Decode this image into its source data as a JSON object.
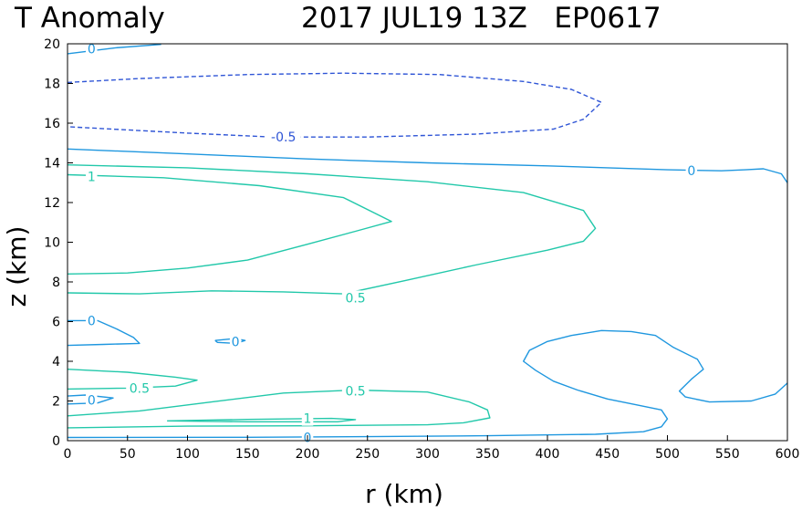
{
  "title": {
    "left": "T Anomaly",
    "right": "2017 JUL19 13Z   EP0617"
  },
  "chart_data": {
    "type": "contour",
    "title": "T Anomaly   2017 JUL19 13Z   EP0617",
    "xlabel": "r (km)",
    "ylabel": "z (km)",
    "xlim": [
      0,
      600
    ],
    "ylim": [
      0,
      20
    ],
    "xticks": [
      0,
      50,
      100,
      150,
      200,
      250,
      300,
      350,
      400,
      450,
      500,
      550,
      600
    ],
    "yticks": [
      0,
      2,
      4,
      6,
      8,
      10,
      12,
      14,
      16,
      18,
      20
    ],
    "grid": false,
    "colors": {
      "neg": "#2f55d6",
      "zero": "#1f97df",
      "pos": "#22c8aa"
    },
    "contours": [
      {
        "level": "-0.5",
        "style": "dashed",
        "color": "neg",
        "points": [
          [
            0,
            18.05
          ],
          [
            60,
            18.25
          ],
          [
            150,
            18.45
          ],
          [
            230,
            18.52
          ],
          [
            310,
            18.45
          ],
          [
            380,
            18.1
          ],
          [
            420,
            17.7
          ],
          [
            445,
            17.05
          ],
          [
            430,
            16.2
          ],
          [
            405,
            15.7
          ],
          [
            340,
            15.45
          ],
          [
            250,
            15.3
          ],
          [
            170,
            15.3
          ],
          [
            100,
            15.5
          ],
          [
            0,
            15.82
          ]
        ]
      },
      {
        "level": "0",
        "color": "zero",
        "points": [
          [
            0,
            14.7
          ],
          [
            100,
            14.45
          ],
          [
            200,
            14.2
          ],
          [
            300,
            14.0
          ],
          [
            400,
            13.85
          ],
          [
            500,
            13.65
          ],
          [
            545,
            13.6
          ],
          [
            565,
            13.65
          ],
          [
            580,
            13.7
          ],
          [
            595,
            13.45
          ],
          [
            600,
            13.0
          ]
        ]
      },
      {
        "level": "0",
        "color": "zero",
        "points": [
          [
            0,
            19.5
          ],
          [
            40,
            19.8
          ],
          [
            78,
            19.97
          ]
        ]
      },
      {
        "level": "0",
        "color": "zero",
        "points": [
          [
            0,
            6.05
          ],
          [
            25,
            6.05
          ],
          [
            42,
            5.6
          ],
          [
            55,
            5.2
          ],
          [
            60,
            4.9
          ],
          [
            30,
            4.85
          ],
          [
            0,
            4.8
          ]
        ]
      },
      {
        "level": "0",
        "color": "zero",
        "points": [
          [
            123,
            5.05
          ],
          [
            140,
            5.15
          ],
          [
            148,
            5.05
          ],
          [
            140,
            4.9
          ],
          [
            125,
            4.95
          ],
          [
            123,
            5.05
          ]
        ]
      },
      {
        "level": "0",
        "color": "zero",
        "points": [
          [
            0,
            2.25
          ],
          [
            15,
            2.3
          ],
          [
            38,
            2.15
          ],
          [
            25,
            1.9
          ],
          [
            0,
            1.85
          ]
        ]
      },
      {
        "level": "0",
        "color": "zero",
        "points": [
          [
            600,
            2.9
          ],
          [
            590,
            2.35
          ],
          [
            570,
            2.0
          ],
          [
            535,
            1.95
          ],
          [
            515,
            2.2
          ],
          [
            510,
            2.5
          ],
          [
            520,
            3.1
          ],
          [
            530,
            3.6
          ],
          [
            525,
            4.1
          ],
          [
            505,
            4.7
          ],
          [
            490,
            5.3
          ],
          [
            470,
            5.5
          ],
          [
            445,
            5.55
          ],
          [
            420,
            5.3
          ],
          [
            400,
            5.0
          ],
          [
            385,
            4.55
          ],
          [
            380,
            4.0
          ],
          [
            390,
            3.55
          ],
          [
            405,
            3.0
          ],
          [
            425,
            2.55
          ],
          [
            450,
            2.1
          ],
          [
            475,
            1.8
          ],
          [
            495,
            1.55
          ],
          [
            500,
            1.1
          ],
          [
            495,
            0.7
          ],
          [
            480,
            0.45
          ],
          [
            440,
            0.32
          ],
          [
            350,
            0.25
          ],
          [
            250,
            0.2
          ],
          [
            150,
            0.17
          ],
          [
            0,
            0.16
          ]
        ]
      },
      {
        "level": "1",
        "color": "pos",
        "points": [
          [
            0,
            13.4
          ],
          [
            80,
            13.25
          ],
          [
            160,
            12.85
          ],
          [
            230,
            12.25
          ],
          [
            270,
            11.05
          ],
          [
            240,
            10.55
          ],
          [
            200,
            9.9
          ],
          [
            150,
            9.1
          ],
          [
            100,
            8.7
          ],
          [
            50,
            8.45
          ],
          [
            0,
            8.4
          ]
        ]
      },
      {
        "level": "0.5",
        "color": "pos",
        "points": [
          [
            0,
            13.9
          ],
          [
            100,
            13.75
          ],
          [
            200,
            13.45
          ],
          [
            300,
            13.05
          ],
          [
            380,
            12.5
          ],
          [
            430,
            11.6
          ],
          [
            440,
            10.7
          ],
          [
            430,
            10.05
          ],
          [
            400,
            9.6
          ],
          [
            340,
            8.85
          ],
          [
            280,
            8.05
          ],
          [
            230,
            7.4
          ],
          [
            180,
            7.5
          ],
          [
            120,
            7.55
          ],
          [
            60,
            7.4
          ],
          [
            0,
            7.45
          ]
        ]
      },
      {
        "level": "0.5",
        "color": "pos",
        "points": [
          [
            0,
            3.6
          ],
          [
            50,
            3.45
          ],
          [
            90,
            3.2
          ],
          [
            108,
            3.05
          ],
          [
            90,
            2.75
          ],
          [
            50,
            2.65
          ],
          [
            0,
            2.6
          ]
        ]
      },
      {
        "level": "0.5",
        "color": "pos",
        "points": [
          [
            0,
            1.25
          ],
          [
            60,
            1.5
          ],
          [
            120,
            1.95
          ],
          [
            180,
            2.4
          ],
          [
            240,
            2.55
          ],
          [
            300,
            2.45
          ],
          [
            335,
            1.95
          ],
          [
            350,
            1.55
          ],
          [
            352,
            1.15
          ],
          [
            330,
            0.9
          ],
          [
            300,
            0.8
          ],
          [
            200,
            0.75
          ],
          [
            100,
            0.73
          ],
          [
            0,
            0.65
          ]
        ]
      },
      {
        "level": "1",
        "color": "pos",
        "points": [
          [
            83,
            1.0
          ],
          [
            150,
            1.07
          ],
          [
            220,
            1.12
          ],
          [
            240,
            1.06
          ],
          [
            225,
            0.95
          ],
          [
            150,
            0.95
          ],
          [
            83,
            1.0
          ]
        ]
      }
    ],
    "labels": [
      {
        "text": "0",
        "x": 20,
        "y": 19.75,
        "color": "zero"
      },
      {
        "text": "-0.5",
        "x": 180,
        "y": 15.3,
        "color": "neg"
      },
      {
        "text": "0",
        "x": 520,
        "y": 13.6,
        "color": "zero"
      },
      {
        "text": "1",
        "x": 20,
        "y": 13.3,
        "color": "pos"
      },
      {
        "text": "0.5",
        "x": 240,
        "y": 7.2,
        "color": "pos"
      },
      {
        "text": "0",
        "x": 20,
        "y": 6.05,
        "color": "zero"
      },
      {
        "text": "0",
        "x": 140,
        "y": 5.0,
        "color": "zero"
      },
      {
        "text": "0.5",
        "x": 60,
        "y": 2.65,
        "color": "pos"
      },
      {
        "text": "0",
        "x": 20,
        "y": 2.05,
        "color": "zero"
      },
      {
        "text": "0.5",
        "x": 240,
        "y": 2.5,
        "color": "pos"
      },
      {
        "text": "1",
        "x": 200,
        "y": 1.12,
        "color": "pos"
      },
      {
        "text": "0",
        "x": 200,
        "y": 0.17,
        "color": "zero"
      }
    ]
  }
}
